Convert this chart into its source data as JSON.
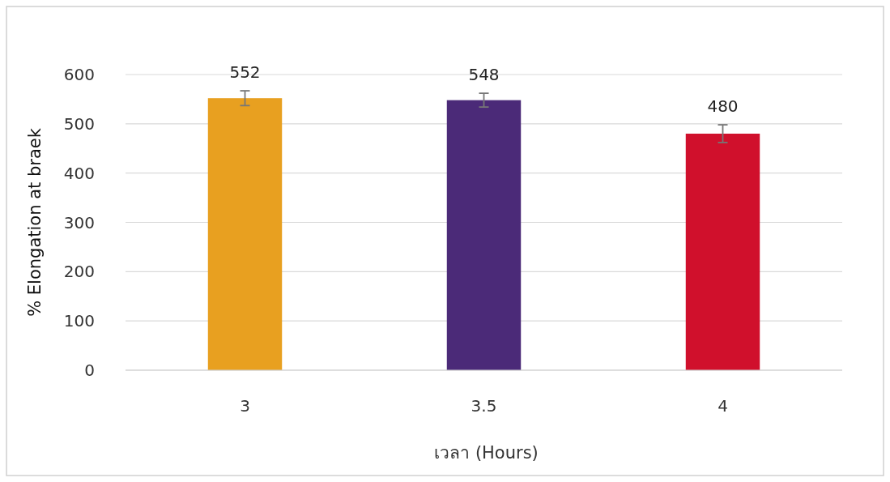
{
  "chart_data": {
    "type": "bar",
    "xlabel": "เวลา (Hours)",
    "ylabel": "% Elongation at braek",
    "categories": [
      "3",
      "3.5",
      "4"
    ],
    "values": [
      552,
      548,
      480
    ],
    "colors": [
      "#e8a020",
      "#4b2a78",
      "#d0102c"
    ],
    "errors": [
      15,
      14,
      18
    ],
    "ylim": [
      0,
      600
    ],
    "yticks": [
      0,
      100,
      200,
      300,
      400,
      500,
      600
    ],
    "grid": "y",
    "data_labels": true
  }
}
